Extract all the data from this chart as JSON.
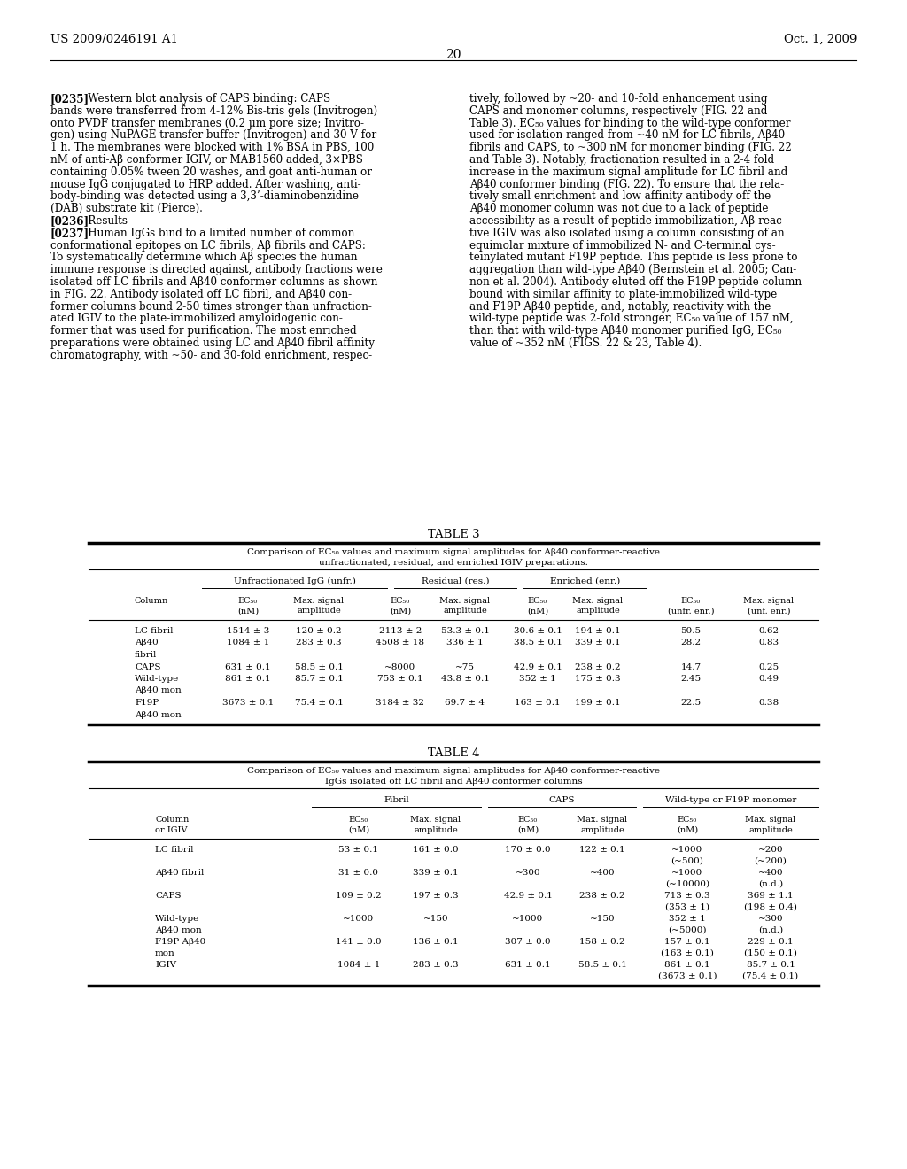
{
  "page_header_left": "US 2009/0246191 A1",
  "page_header_right": "Oct. 1, 2009",
  "page_number": "20",
  "bg_color": "#ffffff",
  "body_left_lines": [
    {
      "text": "[0235]   Western blot analysis of CAPS binding: CAPS",
      "indent": 0
    },
    {
      "text": "bands were transferred from 4-12% Bis-tris gels (Invitrogen)",
      "indent": 0
    },
    {
      "text": "onto PVDF transfer membranes (0.2 μm pore size; Invitro-",
      "indent": 0
    },
    {
      "text": "gen) using NuPAGE transfer buffer (Invitrogen) and 30 V for",
      "indent": 0
    },
    {
      "text": "1 h. The membranes were blocked with 1% BSA in PBS, 100",
      "indent": 0
    },
    {
      "text": "nM of anti-Aβ conformer IGIV, or MAB1560 added, 3×PBS",
      "indent": 0
    },
    {
      "text": "containing 0.05% tween 20 washes, and goat anti-human or",
      "indent": 0
    },
    {
      "text": "mouse IgG conjugated to HRP added. After washing, anti-",
      "indent": 0
    },
    {
      "text": "body-binding was detected using a 3,3’-diaminobenzidine",
      "indent": 0
    },
    {
      "text": "(DAB) substrate kit (Pierce).",
      "indent": 0
    },
    {
      "text": "[0236]   Results",
      "indent": 0
    },
    {
      "text": "[0237]   Human IgGs bind to a limited number of common",
      "indent": 0
    },
    {
      "text": "conformational epitopes on LC fibrils, Aβ fibrils and CAPS:",
      "indent": 0
    },
    {
      "text": "To systematically determine which Aβ species the human",
      "indent": 0
    },
    {
      "text": "immune response is directed against, antibody fractions were",
      "indent": 0
    },
    {
      "text": "isolated off LC fibrils and Aβ40 conformer columns as shown",
      "indent": 0
    },
    {
      "text": "in FIG. 22. Antibody isolated off LC fibril, and Aβ40 con-",
      "indent": 0
    },
    {
      "text": "former columns bound 2-50 times stronger than unfraction-",
      "indent": 0
    },
    {
      "text": "ated IGIV to the plate-immobilized amyloidogenic con-",
      "indent": 0
    },
    {
      "text": "former that was used for purification. The most enriched",
      "indent": 0
    },
    {
      "text": "preparations were obtained using LC and Aβ40 fibril affinity",
      "indent": 0
    },
    {
      "text": "chromatography, with ~50- and 30-fold enrichment, respec-",
      "indent": 0
    }
  ],
  "body_right_lines": [
    {
      "text": "tively, followed by ~20- and 10-fold enhancement using"
    },
    {
      "text": "CAPS and monomer columns, respectively (FIG. 22 and"
    },
    {
      "text": "Table 3). EC₅₀ values for binding to the wild-type conformer"
    },
    {
      "text": "used for isolation ranged from ~40 nM for LC fibrils, Aβ40"
    },
    {
      "text": "fibrils and CAPS, to ~300 nM for monomer binding (FIG. 22"
    },
    {
      "text": "and Table 3). Notably, fractionation resulted in a 2-4 fold"
    },
    {
      "text": "increase in the maximum signal amplitude for LC fibril and"
    },
    {
      "text": "Aβ40 conformer binding (FIG. 22). To ensure that the rela-"
    },
    {
      "text": "tively small enrichment and low affinity antibody off the"
    },
    {
      "text": "Aβ40 monomer column was not due to a lack of peptide"
    },
    {
      "text": "accessibility as a result of peptide immobilization, Aβ-reac-"
    },
    {
      "text": "tive IGIV was also isolated using a column consisting of an"
    },
    {
      "text": "equimolar mixture of immobilized N- and C-terminal cys-"
    },
    {
      "text": "teinylated mutant F19P peptide. This peptide is less prone to"
    },
    {
      "text": "aggregation than wild-type Aβ40 (Bernstein et al. 2005; Can-"
    },
    {
      "text": "non et al. 2004). Antibody eluted off the F19P peptide column"
    },
    {
      "text": "bound with similar affinity to plate-immobilized wild-type"
    },
    {
      "text": "and F19P Aβ40 peptide, and, notably, reactivity with the"
    },
    {
      "text": "wild-type peptide was 2-fold stronger, EC₅₀ value of 157 nM,"
    },
    {
      "text": "than that with wild-type Aβ40 monomer purified IgG, EC₅₀"
    },
    {
      "text": "value of ~352 nM (FIGS. 22 & 23, Table 4)."
    }
  ],
  "table3_title": "TABLE 3",
  "table3_sub1": "Comparison of EC₅₀ values and maximum signal amplitudes for Aβ40 conformer-reactive",
  "table3_sub2": "unfractionated, residual, and enriched IGIV preparations.",
  "table3_g1": "Unfractionated IgG (unfr.)",
  "table3_g2": "Residual (res.)",
  "table3_g3": "Enriched (enr.)",
  "table3_col_headers": [
    [
      "Column"
    ],
    [
      "EC₅₀",
      "(nM)"
    ],
    [
      "Max. signal",
      "amplitude"
    ],
    [
      "EC₅₀",
      "(nM)"
    ],
    [
      "Max. signal",
      "amplitude"
    ],
    [
      "EC₅₀",
      "(nM)"
    ],
    [
      "Max. signal",
      "amplitude"
    ],
    [
      "EC₅₀",
      "(unfr. enr.)"
    ],
    [
      "Max. signal",
      "(unf. enr.)"
    ]
  ],
  "table3_rows": [
    [
      "LC fibril",
      "1514 ± 3",
      "120 ± 0.2",
      "2113 ± 2",
      "53.3 ± 0.1",
      "30.6 ± 0.1",
      "194 ± 0.1",
      "50.5",
      "0.62"
    ],
    [
      "Aβ40",
      "1084 ± 1",
      "283 ± 0.3",
      "4508 ± 18",
      "336 ± 1",
      "38.5 ± 0.1",
      "339 ± 0.1",
      "28.2",
      "0.83"
    ],
    [
      "fibril",
      "",
      "",
      "",
      "",
      "",
      "",
      "",
      ""
    ],
    [
      "CAPS",
      "631 ± 0.1",
      "58.5 ± 0.1",
      "~8000",
      "~75",
      "42.9 ± 0.1",
      "238 ± 0.2",
      "14.7",
      "0.25"
    ],
    [
      "Wild-type",
      "861 ± 0.1",
      "85.7 ± 0.1",
      "753 ± 0.1",
      "43.8 ± 0.1",
      "352 ± 1",
      "175 ± 0.3",
      "2.45",
      "0.49"
    ],
    [
      "Aβ40 mon",
      "",
      "",
      "",
      "",
      "",
      "",
      "",
      ""
    ],
    [
      "F19P",
      "3673 ± 0.1",
      "75.4 ± 0.1",
      "3184 ± 32",
      "69.7 ± 4",
      "163 ± 0.1",
      "199 ± 0.1",
      "22.5",
      "0.38"
    ],
    [
      "Aβ40 mon",
      "",
      "",
      "",
      "",
      "",
      "",
      "",
      ""
    ]
  ],
  "table4_title": "TABLE 4",
  "table4_sub1": "Comparison of EC₅₀ values and maximum signal amplitudes for Aβ40 conformer-reactive",
  "table4_sub2": "IgGs isolated off LC fibril and Aβ40 conformer columns",
  "table4_g1": "Fibril",
  "table4_g2": "CAPS",
  "table4_g3": "Wild-type or F19P monomer",
  "table4_col_headers": [
    [
      "Column",
      "or IGIV"
    ],
    [
      "EC₅₀",
      "(nM)"
    ],
    [
      "Max. signal",
      "amplitude"
    ],
    [
      "EC₅₀",
      "(nM)"
    ],
    [
      "Max. signal",
      "amplitude"
    ],
    [
      "EC₅₀",
      "(nM)"
    ],
    [
      "Max. signal",
      "amplitude"
    ]
  ],
  "table4_rows": [
    [
      "LC fibril",
      "53 ± 0.1",
      "161 ± 0.0",
      "170 ± 0.0",
      "122 ± 0.1",
      "~1000",
      "~200"
    ],
    [
      "",
      "",
      "",
      "",
      "",
      "(~500)",
      "(~200)"
    ],
    [
      "Aβ40 fibril",
      "31 ± 0.0",
      "339 ± 0.1",
      "~300",
      "~400",
      "~1000",
      "~400"
    ],
    [
      "",
      "",
      "",
      "",
      "",
      "(~10000)",
      "(n.d.)"
    ],
    [
      "CAPS",
      "109 ± 0.2",
      "197 ± 0.3",
      "42.9 ± 0.1",
      "238 ± 0.2",
      "713 ± 0.3",
      "369 ± 1.1"
    ],
    [
      "",
      "",
      "",
      "",
      "",
      "(353 ± 1)",
      "(198 ± 0.4)"
    ],
    [
      "Wild-type",
      "~1000",
      "~150",
      "~1000",
      "~150",
      "352 ± 1",
      "~300"
    ],
    [
      "Aβ40 mon",
      "",
      "",
      "",
      "",
      "(~5000)",
      "(n.d.)"
    ],
    [
      "F19P Aβ40",
      "141 ± 0.0",
      "136 ± 0.1",
      "307 ± 0.0",
      "158 ± 0.2",
      "157 ± 0.1",
      "229 ± 0.1"
    ],
    [
      "mon",
      "",
      "",
      "",
      "",
      "(163 ± 0.1)",
      "(150 ± 0.1)"
    ],
    [
      "IGIV",
      "1084 ± 1",
      "283 ± 0.3",
      "631 ± 0.1",
      "58.5 ± 0.1",
      "861 ± 0.1",
      "85.7 ± 0.1"
    ],
    [
      "",
      "",
      "",
      "",
      "",
      "(3673 ± 0.1)",
      "(75.4 ± 0.1)"
    ]
  ]
}
